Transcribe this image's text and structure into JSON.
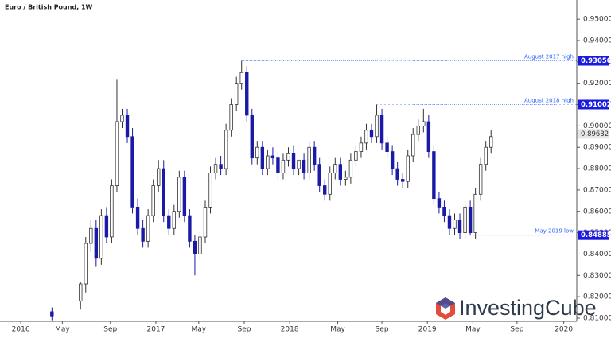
{
  "chart_data": {
    "type": "candlestick",
    "title": "Euro / British Pound, 1W",
    "logo": "InvestingCube",
    "up_color": "#ffffff",
    "down_color": "#1a1aa6",
    "xlim": [
      0,
      222
    ],
    "xticks": [
      {
        "value": 8,
        "label": "2016"
      },
      {
        "value": 24,
        "label": "May"
      },
      {
        "value": 42.5,
        "label": "Sep"
      },
      {
        "value": 60,
        "label": "2017"
      },
      {
        "value": 76.5,
        "label": "May"
      },
      {
        "value": 94,
        "label": "Sep"
      },
      {
        "value": 111.5,
        "label": "2018"
      },
      {
        "value": 130,
        "label": "May"
      },
      {
        "value": 147,
        "label": "Sep"
      },
      {
        "value": 164.5,
        "label": "2019"
      },
      {
        "value": 182,
        "label": "May"
      },
      {
        "value": 199,
        "label": "Sep"
      },
      {
        "value": 217,
        "label": "2020"
      }
    ],
    "ylim": [
      0.8085,
      0.959
    ],
    "yticks": [
      {
        "value": 0.81,
        "label": "0.81000"
      },
      {
        "value": 0.82,
        "label": "0.82000"
      },
      {
        "value": 0.83,
        "label": "0.83000"
      },
      {
        "value": 0.84,
        "label": "0.84000"
      },
      {
        "value": 0.85,
        "label": "0.85000"
      },
      {
        "value": 0.86,
        "label": "0.86000"
      },
      {
        "value": 0.87,
        "label": "0.87000"
      },
      {
        "value": 0.88,
        "label": "0.88000"
      },
      {
        "value": 0.89,
        "label": "0.89000"
      },
      {
        "value": 0.9,
        "label": "0.90000"
      },
      {
        "value": 0.91,
        "label": "0.91000"
      },
      {
        "value": 0.92,
        "label": "0.92000"
      },
      {
        "value": 0.93,
        "label": "0.93000"
      },
      {
        "value": 0.94,
        "label": "0.94000"
      },
      {
        "value": 0.95,
        "label": "0.95000"
      }
    ],
    "x": [
      20,
      31,
      33,
      35,
      37,
      39,
      41,
      43,
      45,
      47,
      49,
      51,
      53,
      55,
      57,
      59,
      61,
      63,
      65,
      67,
      69,
      71,
      73,
      75,
      77,
      79,
      81,
      83,
      85,
      87,
      89,
      91,
      93,
      95,
      97,
      99,
      101,
      103,
      105,
      107,
      109,
      111,
      113,
      115,
      117,
      119,
      121,
      123,
      125,
      127,
      129,
      131,
      133,
      135,
      137,
      139,
      141,
      143,
      145,
      147,
      149,
      151,
      153,
      155,
      157,
      159,
      161,
      163,
      165,
      167,
      169,
      171,
      173,
      175,
      177,
      179,
      181,
      183,
      185,
      187,
      189
    ],
    "open": [
      0.813,
      0.818,
      0.826,
      0.845,
      0.852,
      0.838,
      0.858,
      0.848,
      0.872,
      0.902,
      0.905,
      0.895,
      0.862,
      0.852,
      0.846,
      0.858,
      0.872,
      0.88,
      0.858,
      0.852,
      0.86,
      0.876,
      0.858,
      0.846,
      0.84,
      0.848,
      0.862,
      0.878,
      0.882,
      0.88,
      0.898,
      0.91,
      0.92,
      0.925,
      0.905,
      0.885,
      0.89,
      0.88,
      0.886,
      0.885,
      0.878,
      0.884,
      0.887,
      0.88,
      0.884,
      0.878,
      0.89,
      0.882,
      0.872,
      0.868,
      0.878,
      0.882,
      0.875,
      0.876,
      0.884,
      0.888,
      0.892,
      0.898,
      0.895,
      0.905,
      0.892,
      0.888,
      0.88,
      0.875,
      0.874,
      0.886,
      0.896,
      0.9,
      0.902,
      0.888,
      0.866,
      0.862,
      0.858,
      0.852,
      0.856,
      0.85,
      0.862,
      0.85,
      0.868,
      0.882,
      0.89
    ],
    "high": [
      0.815,
      0.827,
      0.848,
      0.856,
      0.856,
      0.861,
      0.862,
      0.875,
      0.922,
      0.908,
      0.908,
      0.899,
      0.866,
      0.856,
      0.861,
      0.875,
      0.884,
      0.884,
      0.861,
      0.863,
      0.879,
      0.879,
      0.861,
      0.849,
      0.851,
      0.865,
      0.881,
      0.885,
      0.886,
      0.901,
      0.913,
      0.923,
      0.9305,
      0.928,
      0.908,
      0.893,
      0.893,
      0.889,
      0.89,
      0.888,
      0.887,
      0.89,
      0.891,
      0.884,
      0.887,
      0.893,
      0.893,
      0.885,
      0.875,
      0.881,
      0.885,
      0.885,
      0.879,
      0.887,
      0.891,
      0.895,
      0.901,
      0.901,
      0.91,
      0.908,
      0.895,
      0.891,
      0.883,
      0.878,
      0.889,
      0.899,
      0.903,
      0.908,
      0.905,
      0.891,
      0.869,
      0.865,
      0.861,
      0.859,
      0.859,
      0.865,
      0.865,
      0.871,
      0.885,
      0.893,
      0.898
    ],
    "low": [
      0.809,
      0.814,
      0.822,
      0.841,
      0.834,
      0.835,
      0.845,
      0.845,
      0.869,
      0.899,
      0.892,
      0.859,
      0.849,
      0.843,
      0.843,
      0.855,
      0.869,
      0.855,
      0.849,
      0.849,
      0.857,
      0.855,
      0.843,
      0.83,
      0.837,
      0.845,
      0.859,
      0.875,
      0.877,
      0.877,
      0.895,
      0.907,
      0.917,
      0.902,
      0.882,
      0.882,
      0.877,
      0.877,
      0.882,
      0.875,
      0.875,
      0.881,
      0.877,
      0.877,
      0.875,
      0.875,
      0.879,
      0.869,
      0.865,
      0.865,
      0.875,
      0.872,
      0.872,
      0.873,
      0.881,
      0.885,
      0.889,
      0.892,
      0.892,
      0.889,
      0.885,
      0.877,
      0.872,
      0.871,
      0.871,
      0.883,
      0.893,
      0.897,
      0.885,
      0.863,
      0.859,
      0.855,
      0.849,
      0.849,
      0.847,
      0.847,
      0.84885,
      0.847,
      0.865,
      0.879,
      0.887
    ],
    "close": [
      0.811,
      0.826,
      0.845,
      0.852,
      0.838,
      0.858,
      0.848,
      0.872,
      0.902,
      0.905,
      0.895,
      0.862,
      0.852,
      0.846,
      0.858,
      0.872,
      0.88,
      0.858,
      0.852,
      0.86,
      0.876,
      0.858,
      0.846,
      0.84,
      0.848,
      0.862,
      0.878,
      0.882,
      0.88,
      0.898,
      0.91,
      0.92,
      0.925,
      0.905,
      0.885,
      0.89,
      0.88,
      0.886,
      0.885,
      0.878,
      0.884,
      0.887,
      0.88,
      0.884,
      0.878,
      0.89,
      0.882,
      0.872,
      0.868,
      0.878,
      0.882,
      0.875,
      0.876,
      0.884,
      0.888,
      0.892,
      0.898,
      0.895,
      0.905,
      0.892,
      0.888,
      0.88,
      0.875,
      0.874,
      0.886,
      0.896,
      0.9,
      0.902,
      0.888,
      0.866,
      0.862,
      0.858,
      0.852,
      0.856,
      0.85,
      0.862,
      0.85,
      0.868,
      0.882,
      0.89,
      0.895
    ],
    "annotations": [
      {
        "text": "August 2017 high",
        "value": 0.9305,
        "label": "0.93050",
        "x": 93
      },
      {
        "text": "August 2018 high",
        "value": 0.91002,
        "label": "0.91002",
        "x": 145
      },
      {
        "text": "May 2019 low",
        "value": 0.84885,
        "label": "0.84885",
        "x": 181
      }
    ],
    "last_price": {
      "value": 0.89632,
      "label": "0.89632"
    }
  }
}
